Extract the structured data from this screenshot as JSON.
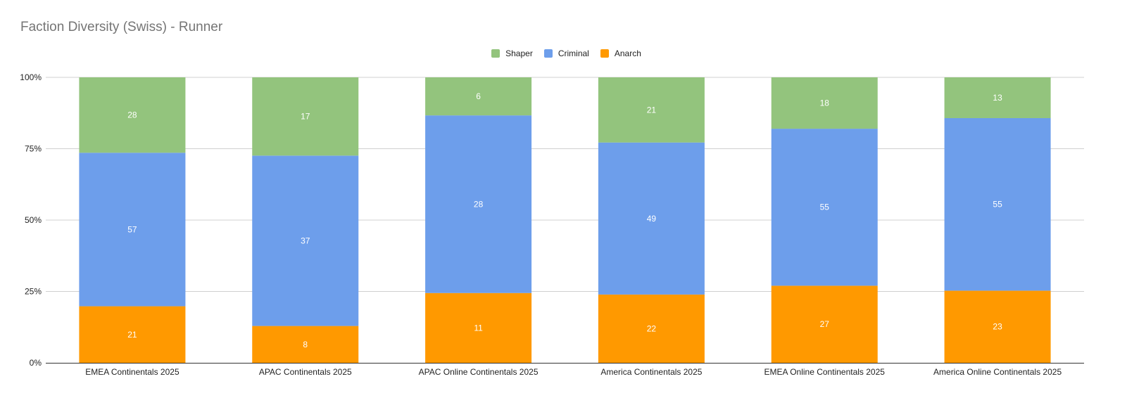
{
  "chart_data": {
    "type": "bar",
    "stacked": true,
    "normalized": true,
    "title": "Faction Diversity (Swiss) - Runner",
    "xlabel": "",
    "ylabel": "",
    "ylim": [
      0,
      100
    ],
    "yticks": [
      "0%",
      "25%",
      "50%",
      "75%",
      "100%"
    ],
    "legend_position": "top-center",
    "categories": [
      "EMEA Continentals 2025",
      "APAC Continentals 2025",
      "APAC Online Continentals 2025",
      "America Continentals 2025",
      "EMEA Online Continentals 2025",
      "America Online Continentals 2025"
    ],
    "series": [
      {
        "name": "Anarch",
        "color": "#ff9900",
        "values": [
          21,
          8,
          11,
          22,
          27,
          23
        ]
      },
      {
        "name": "Criminal",
        "color": "#6d9eeb",
        "values": [
          57,
          37,
          28,
          49,
          55,
          55
        ]
      },
      {
        "name": "Shaper",
        "color": "#93c47d",
        "values": [
          28,
          17,
          6,
          21,
          18,
          13
        ]
      }
    ],
    "legend_order": [
      "Shaper",
      "Criminal",
      "Anarch"
    ]
  }
}
